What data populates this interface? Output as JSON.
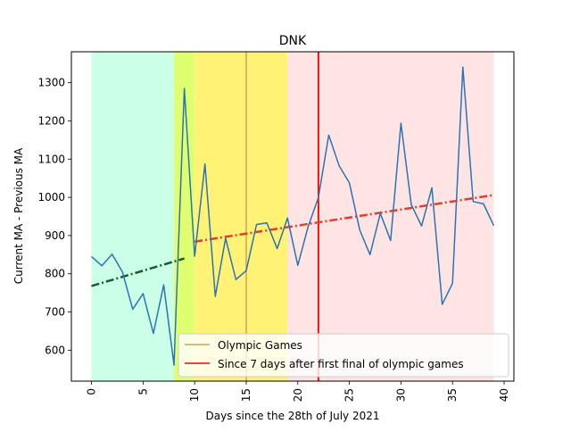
{
  "chart_data": {
    "type": "line",
    "title": "DNK",
    "xlabel": "Days since the 28th of July 2021",
    "ylabel": "Current MA - Previous MA",
    "xlim": [
      -1.95,
      40.95
    ],
    "ylim": [
      519,
      1381
    ],
    "xticks": [
      0,
      5,
      10,
      15,
      20,
      25,
      30,
      35,
      40
    ],
    "yticks": [
      600,
      700,
      800,
      900,
      1000,
      1100,
      1200,
      1300
    ],
    "grid": false,
    "legend_position": "lower-right",
    "regions": [
      {
        "x0": 0,
        "x1": 8,
        "color": "#ccffe8"
      },
      {
        "x0": 8,
        "x1": 10,
        "color": "#e0ff70"
      },
      {
        "x0": 10,
        "x1": 19,
        "color": "#fff275"
      },
      {
        "x0": 19,
        "x1": 39,
        "color": "#ffe4e4"
      }
    ],
    "vlines": [
      {
        "x": 15,
        "color": "#d4a25a",
        "legend": "Olympic Games"
      },
      {
        "x": 22,
        "color": "#ff0000",
        "legend": "Since 7 days after first final of olympic games"
      }
    ],
    "trendlines": [
      {
        "x": [
          0,
          9
        ],
        "y": [
          768,
          840
        ],
        "color": "#1a5c2a"
      },
      {
        "x": [
          10,
          39
        ],
        "y": [
          884,
          1006
        ],
        "color": "#e04030"
      }
    ],
    "series": [
      {
        "color": "#2b73b3",
        "x": [
          0,
          1,
          2,
          3,
          4,
          5,
          6,
          7,
          8,
          9,
          10,
          11,
          12,
          13,
          14,
          15,
          16,
          17,
          18,
          19,
          20,
          21,
          22,
          23,
          24,
          25,
          26,
          27,
          28,
          29,
          30,
          31,
          32,
          33,
          34,
          35,
          36,
          37,
          38,
          39
        ],
        "values": [
          845,
          821,
          851,
          805,
          707,
          748,
          644,
          771,
          561,
          1285,
          846,
          1087,
          741,
          893,
          785,
          808,
          929,
          933,
          866,
          946,
          822,
          923,
          1000,
          1163,
          1083,
          1038,
          915,
          850,
          958,
          887,
          1194,
          981,
          925,
          1025,
          720,
          775,
          1341,
          989,
          983,
          926
        ]
      }
    ],
    "legend": [
      {
        "label": "Olympic Games",
        "color": "#d4a25a"
      },
      {
        "label": "Since 7 days after first final of olympic games",
        "color": "#ff0000"
      }
    ]
  }
}
